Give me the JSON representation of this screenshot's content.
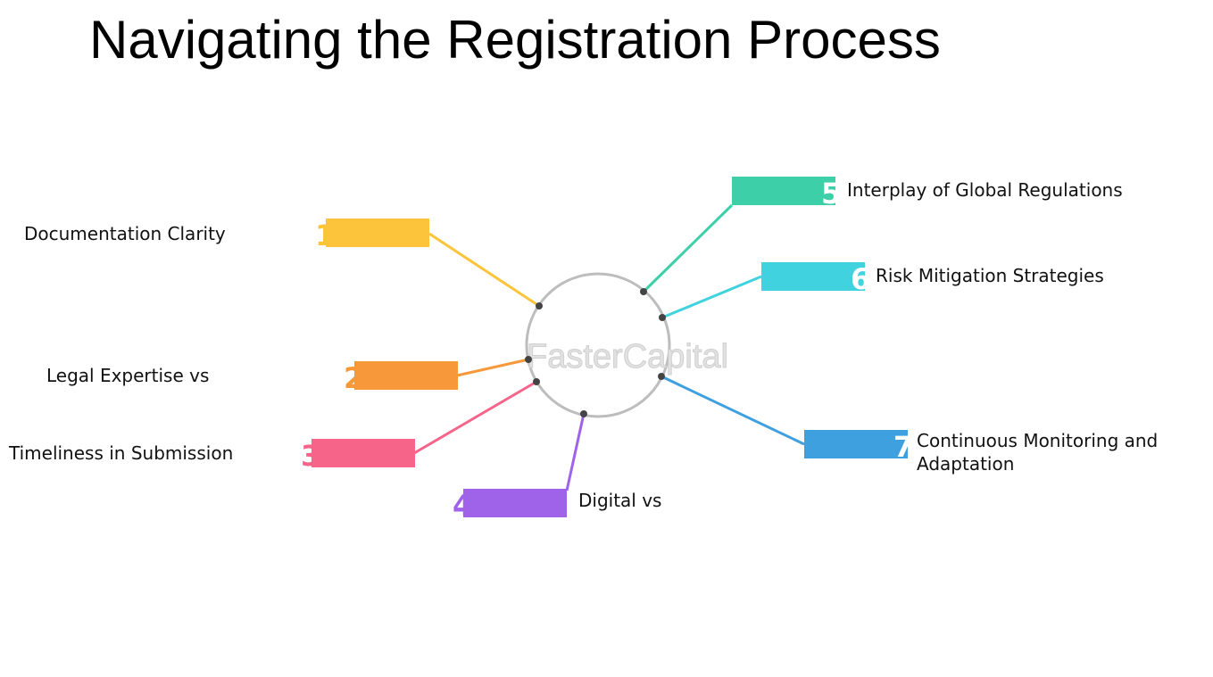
{
  "title": "Navigating the Registration Process",
  "watermark": "FasterCapital",
  "nodes": [
    {
      "number": "1",
      "label": "Documentation Clarity",
      "color": "#fcc43a"
    },
    {
      "number": "2",
      "label": "Legal Expertise vs",
      "color": "#f7993a"
    },
    {
      "number": "3",
      "label": "Timeliness in Submission",
      "color": "#f7648a"
    },
    {
      "number": "4",
      "label": "Digital vs",
      "color": "#9f63ea"
    },
    {
      "number": "5",
      "label": "Interplay of Global Regulations",
      "color": "#3ccfa8"
    },
    {
      "number": "6",
      "label": "Risk Mitigation Strategies",
      "color": "#41d2e0"
    },
    {
      "number": "7",
      "label": "Continuous Monitoring and Adaptation",
      "color": "#3fa0e0"
    }
  ]
}
